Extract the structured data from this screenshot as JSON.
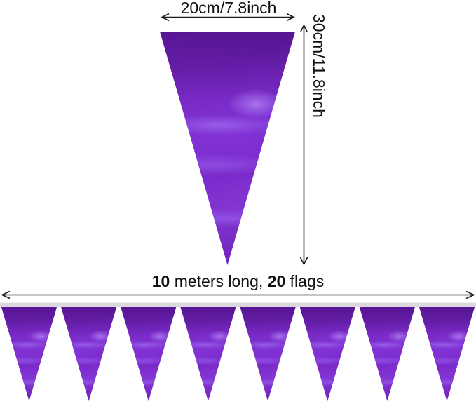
{
  "dimensions": {
    "flag_width": "20cm/7.8inch",
    "flag_height": "30cm/11.8inch"
  },
  "banner": {
    "length_number": "10",
    "length_text": " meters long, ",
    "flag_number": "20",
    "flags_text": " flags",
    "visible_flag_count": 8
  },
  "colors": {
    "flag_purple_dark": "#6b1fae",
    "flag_purple_mid": "#7c2dcc",
    "flag_purple_light": "#9a6cec",
    "string_gray": "#dcd9de",
    "arrow_black": "#1c1c1c"
  }
}
